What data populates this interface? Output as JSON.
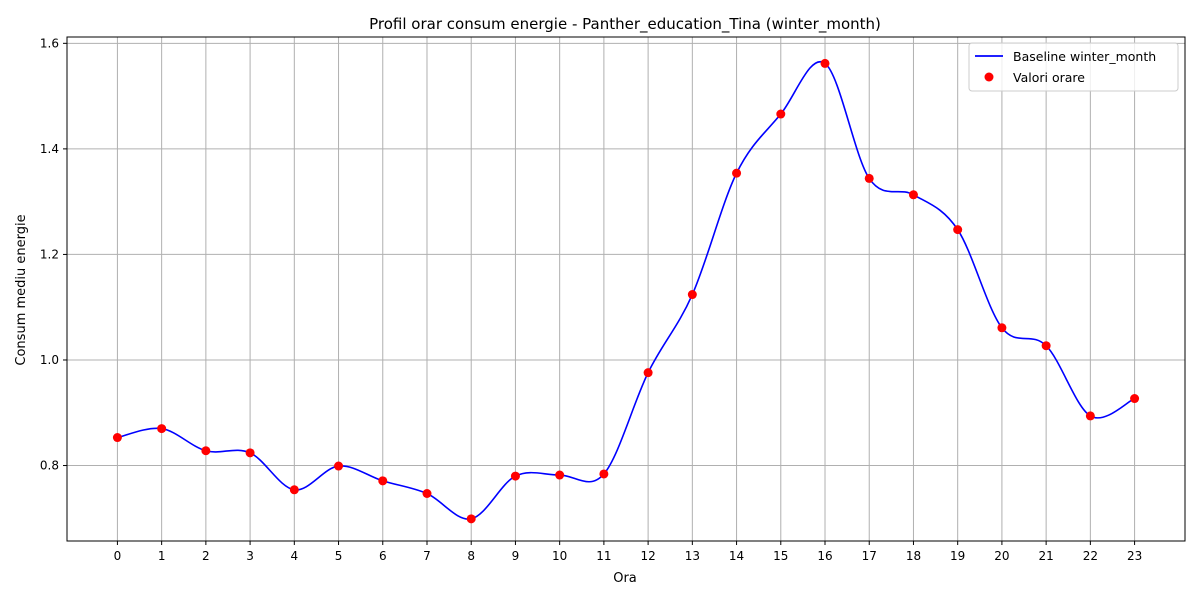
{
  "chart_data": {
    "type": "line",
    "title": "Profil orar consum energie - Panther_education_Tina (winter_month)",
    "xlabel": "Ora",
    "ylabel": "Consum mediu energie",
    "x": [
      0,
      1,
      2,
      3,
      4,
      5,
      6,
      7,
      8,
      9,
      10,
      11,
      12,
      13,
      14,
      15,
      16,
      17,
      18,
      19,
      20,
      21,
      22,
      23
    ],
    "x_tick_labels": [
      "0",
      "1",
      "2",
      "3",
      "4",
      "5",
      "6",
      "7",
      "8",
      "9",
      "10",
      "11",
      "12",
      "13",
      "14",
      "15",
      "16",
      "17",
      "18",
      "19",
      "20",
      "21",
      "22",
      "23"
    ],
    "y_ticks": [
      0.8,
      1.0,
      1.2,
      1.4,
      1.6
    ],
    "y_tick_labels": [
      "0.8",
      "1.0",
      "1.2",
      "1.4",
      "1.6"
    ],
    "xlim": [
      -1.14,
      24.14
    ],
    "ylim": [
      0.657,
      1.612
    ],
    "grid": true,
    "legend_position": "top-right",
    "series": [
      {
        "name": "Baseline winter_month",
        "kind": "smooth-line",
        "color": "#0000ff",
        "values": [
          0.853,
          0.87,
          0.828,
          0.824,
          0.754,
          0.799,
          0.771,
          0.747,
          0.699,
          0.78,
          0.782,
          0.784,
          0.976,
          1.124,
          1.354,
          1.466,
          1.562,
          1.344,
          1.313,
          1.247,
          1.061,
          1.027,
          0.894,
          0.927
        ]
      },
      {
        "name": "Valori orare",
        "kind": "scatter",
        "color": "#ff0000",
        "values": [
          0.853,
          0.87,
          0.828,
          0.824,
          0.754,
          0.799,
          0.771,
          0.747,
          0.699,
          0.78,
          0.782,
          0.784,
          0.976,
          1.124,
          1.354,
          1.466,
          1.562,
          1.344,
          1.313,
          1.247,
          1.061,
          1.027,
          0.894,
          0.927
        ]
      }
    ]
  }
}
